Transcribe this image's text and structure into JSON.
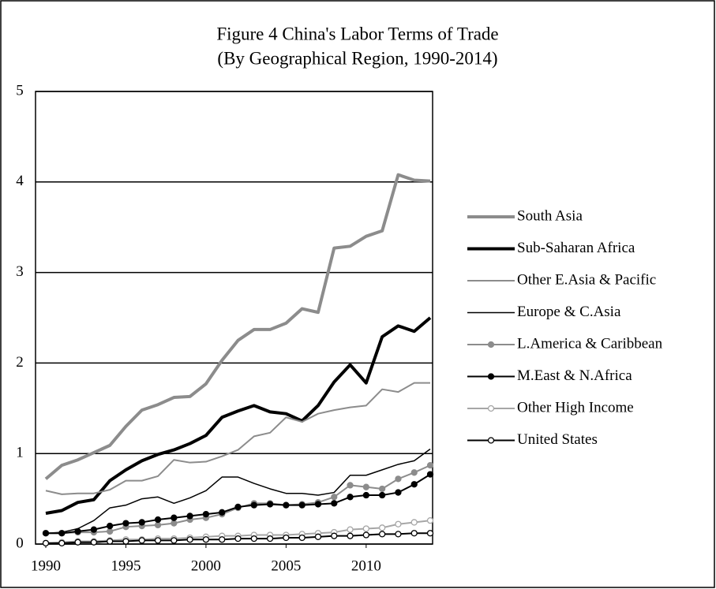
{
  "chart_data": {
    "type": "line",
    "title": "Figure 4 China's Labor Terms of Trade",
    "subtitle": "(By Geographical Region, 1990-2014)",
    "x": [
      1990,
      1991,
      1992,
      1993,
      1994,
      1995,
      1996,
      1997,
      1998,
      1999,
      2000,
      2001,
      2002,
      2003,
      2004,
      2005,
      2006,
      2007,
      2008,
      2009,
      2010,
      2011,
      2012,
      2013,
      2014
    ],
    "xlim": [
      1990,
      2014
    ],
    "xticks": [
      1990,
      1995,
      2000,
      2005,
      2010
    ],
    "ylim": [
      0,
      5
    ],
    "yticks": [
      0,
      1,
      2,
      3,
      4,
      5
    ],
    "grid": true,
    "legend": "right",
    "series": [
      {
        "name": "South Asia",
        "color": "#8c8c8c",
        "width": 4,
        "marker": "none",
        "values": [
          0.72,
          0.87,
          0.93,
          1.01,
          1.09,
          1.3,
          1.48,
          1.54,
          1.62,
          1.63,
          1.77,
          2.03,
          2.25,
          2.37,
          2.37,
          2.44,
          2.6,
          2.56,
          3.27,
          3.29,
          3.4,
          3.46,
          4.08,
          4.02,
          4.01
        ]
      },
      {
        "name": "Sub-Saharan Africa",
        "color": "#000000",
        "width": 4,
        "marker": "none",
        "values": [
          0.34,
          0.37,
          0.46,
          0.49,
          0.7,
          0.82,
          0.92,
          0.99,
          1.04,
          1.11,
          1.2,
          1.4,
          1.47,
          1.53,
          1.46,
          1.44,
          1.36,
          1.53,
          1.79,
          1.98,
          1.78,
          2.29,
          2.41,
          2.35,
          2.5
        ]
      },
      {
        "name": "Other E.Asia & Pacific",
        "color": "#8c8c8c",
        "width": 2,
        "marker": "none",
        "values": [
          0.59,
          0.55,
          0.56,
          0.56,
          0.6,
          0.7,
          0.7,
          0.75,
          0.93,
          0.9,
          0.91,
          0.97,
          1.04,
          1.19,
          1.23,
          1.4,
          1.35,
          1.44,
          1.48,
          1.51,
          1.53,
          1.71,
          1.68,
          1.78,
          1.78
        ]
      },
      {
        "name": "Europe & C.Asia",
        "color": "#000000",
        "width": 1.5,
        "marker": "none",
        "values": [
          0.12,
          0.13,
          0.17,
          0.26,
          0.4,
          0.43,
          0.5,
          0.52,
          0.45,
          0.51,
          0.59,
          0.74,
          0.74,
          0.67,
          0.61,
          0.56,
          0.56,
          0.54,
          0.57,
          0.76,
          0.76,
          0.82,
          0.88,
          0.92,
          1.05
        ]
      },
      {
        "name": "L.America & Caribbean",
        "color": "#8c8c8c",
        "width": 2,
        "marker": "filled",
        "values": [
          0.12,
          0.12,
          0.13,
          0.13,
          0.14,
          0.19,
          0.2,
          0.21,
          0.23,
          0.27,
          0.29,
          0.33,
          0.4,
          0.45,
          0.45,
          0.43,
          0.44,
          0.46,
          0.52,
          0.65,
          0.63,
          0.61,
          0.72,
          0.79,
          0.87
        ]
      },
      {
        "name": "M.East & N.Africa",
        "color": "#000000",
        "width": 2,
        "marker": "filled",
        "values": [
          0.12,
          0.12,
          0.14,
          0.16,
          0.2,
          0.23,
          0.24,
          0.27,
          0.29,
          0.31,
          0.33,
          0.35,
          0.41,
          0.43,
          0.44,
          0.43,
          0.43,
          0.44,
          0.45,
          0.52,
          0.54,
          0.54,
          0.57,
          0.66,
          0.77
        ]
      },
      {
        "name": "Other High Income",
        "color": "#a6a6a6",
        "width": 2,
        "marker": "open",
        "values": [
          0.01,
          0.02,
          0.03,
          0.03,
          0.04,
          0.05,
          0.05,
          0.06,
          0.06,
          0.07,
          0.08,
          0.09,
          0.09,
          0.1,
          0.1,
          0.1,
          0.11,
          0.12,
          0.13,
          0.16,
          0.17,
          0.18,
          0.22,
          0.24,
          0.26
        ]
      },
      {
        "name": "United States",
        "color": "#000000",
        "width": 2,
        "marker": "open",
        "values": [
          0.01,
          0.01,
          0.02,
          0.02,
          0.03,
          0.03,
          0.04,
          0.04,
          0.04,
          0.05,
          0.05,
          0.05,
          0.06,
          0.06,
          0.06,
          0.07,
          0.07,
          0.08,
          0.09,
          0.09,
          0.1,
          0.11,
          0.11,
          0.12,
          0.12
        ]
      }
    ]
  }
}
